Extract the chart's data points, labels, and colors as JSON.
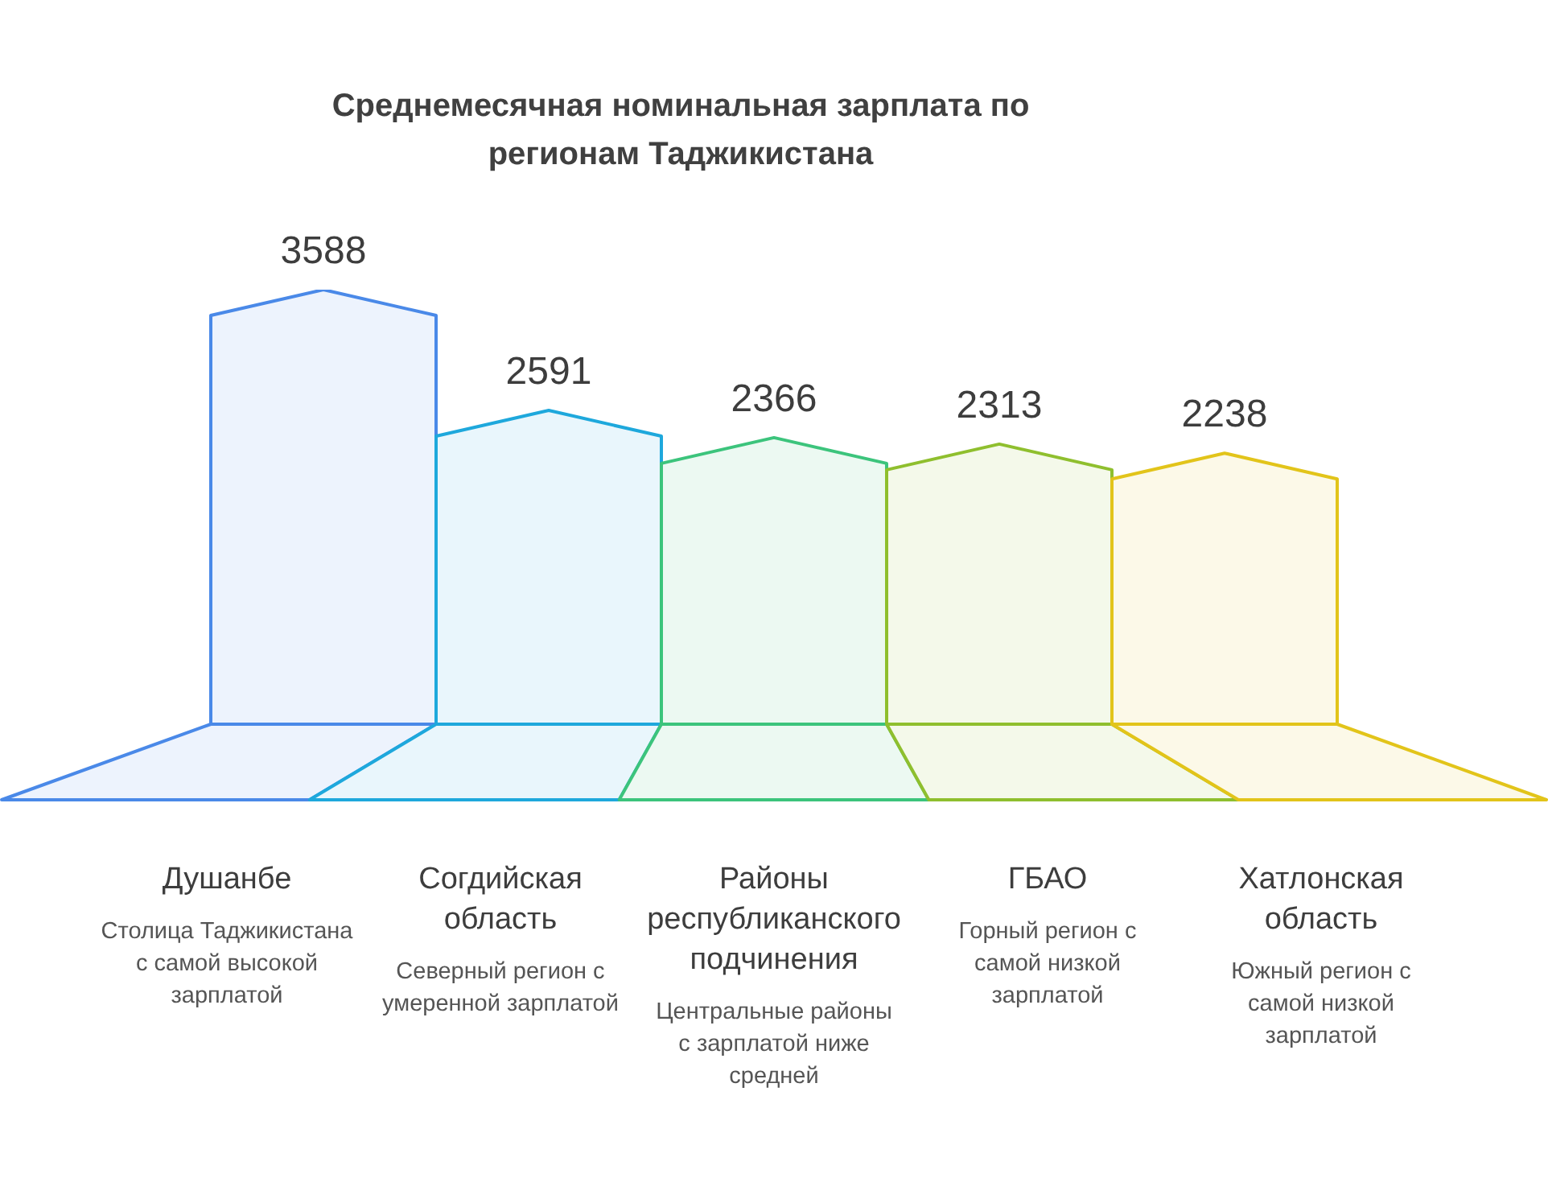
{
  "chart_data": {
    "type": "bar",
    "title": "Среднемесячная номинальная зарплата по регионам Таджикистана",
    "categories": [
      "Душанбе",
      "Согдийская область",
      "Районы республиканского подчинения",
      "ГБАО",
      "Хатлонская область"
    ],
    "values": [
      3588,
      2591,
      2366,
      2313,
      2238
    ],
    "colors": [
      "#4a89e8",
      "#1ea8dc",
      "#3cc47c",
      "#8fbf2e",
      "#e2c41a"
    ],
    "data_labels": true,
    "tick_labels": "x",
    "annotations": [
      "Столица Таджикистана с самой высокой зарплатой",
      "Северный регион с умеренной зарплатой",
      "Центральные районы с зарплатой ниже средней",
      "Горный регион с самой низкой зарплатой",
      "Южный регион с самой низкой зарплатой"
    ]
  }
}
